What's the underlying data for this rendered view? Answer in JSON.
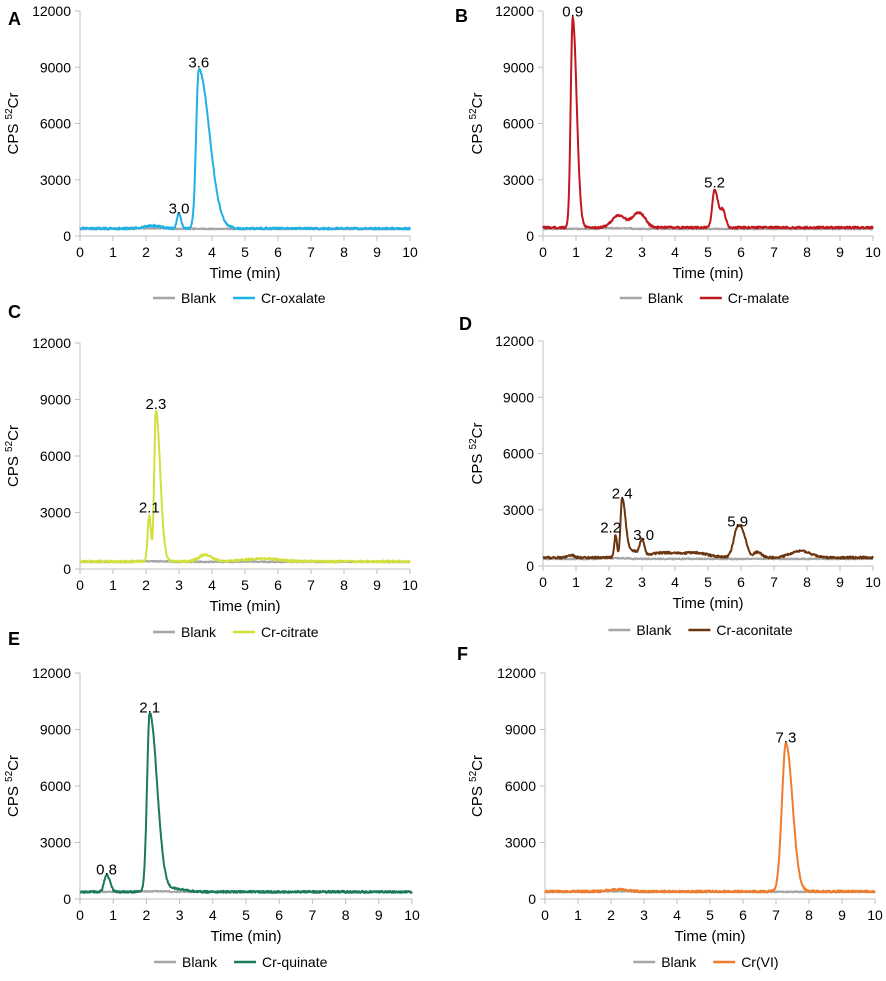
{
  "figure": {
    "blank_color": "#a6a6a6"
  },
  "chart_data": [
    {
      "type": "line",
      "panel": "A",
      "title": "",
      "xlabel": "Time (min)",
      "ylabel": "CPS 52Cr",
      "xlim": [
        0,
        10
      ],
      "ylim": [
        0,
        12000
      ],
      "xticks": [
        0,
        1,
        2,
        3,
        4,
        5,
        6,
        7,
        8,
        9,
        10
      ],
      "yticks": [
        0,
        3000,
        6000,
        9000,
        12000
      ],
      "legend": "bottom",
      "series": [
        {
          "name": "Blank",
          "color": "#a6a6a6",
          "baseline": 380,
          "bumps": [
            [
              2.0,
              2.4,
              0.3,
              60
            ]
          ]
        },
        {
          "name": "Cr-oxalate",
          "color": "#1fb0e6",
          "baseline": 400,
          "peaks": [
            [
              2.2,
              150,
              0.25
            ],
            [
              3.0,
              800,
              0.06
            ],
            [
              3.6,
              8500,
              0.08,
              0.32
            ]
          ]
        }
      ],
      "annotations": [
        {
          "text": "3.0",
          "x": 3.0,
          "y": 1200
        },
        {
          "text": "3.6",
          "x": 3.6,
          "y": 9000
        }
      ]
    },
    {
      "type": "line",
      "panel": "B",
      "title": "",
      "xlabel": "Time (min)",
      "ylabel": "CPS 52Cr",
      "xlim": [
        0,
        10
      ],
      "ylim": [
        0,
        12000
      ],
      "xticks": [
        0,
        1,
        2,
        3,
        4,
        5,
        6,
        7,
        8,
        9,
        10
      ],
      "yticks": [
        0,
        3000,
        6000,
        9000,
        12000
      ],
      "legend": "bottom",
      "series": [
        {
          "name": "Blank",
          "color": "#a6a6a6",
          "baseline": 380,
          "bumps": [
            [
              2.0,
              2.4,
              0.3,
              60
            ]
          ]
        },
        {
          "name": "Cr-malate",
          "color": "#c0181e",
          "baseline": 450,
          "peaks": [
            [
              0.9,
              11200,
              0.06,
              0.12
            ],
            [
              2.3,
              650,
              0.2
            ],
            [
              2.8,
              500,
              0.15
            ],
            [
              3.0,
              500,
              0.15
            ],
            [
              5.2,
              2050,
              0.07,
              0.1
            ],
            [
              5.45,
              900,
              0.08
            ]
          ]
        }
      ],
      "annotations": [
        {
          "text": "0.9",
          "x": 0.9,
          "y": 11700
        },
        {
          "text": "5.2",
          "x": 5.2,
          "y": 2600
        }
      ]
    },
    {
      "type": "line",
      "panel": "C",
      "title": "",
      "xlabel": "Time (min)",
      "ylabel": "CPS 52Cr",
      "xlim": [
        0,
        10
      ],
      "ylim": [
        0,
        12000
      ],
      "xticks": [
        0,
        1,
        2,
        3,
        4,
        5,
        6,
        7,
        8,
        9,
        10
      ],
      "yticks": [
        0,
        3000,
        6000,
        9000,
        12000
      ],
      "legend": "bottom",
      "series": [
        {
          "name": "Blank",
          "color": "#a6a6a6",
          "baseline": 380,
          "bumps": [
            [
              2.0,
              2.4,
              0.3,
              60
            ]
          ]
        },
        {
          "name": "Cr-citrate",
          "color": "#d2e03c",
          "baseline": 400,
          "peaks": [
            [
              2.1,
              2450,
              0.05
            ],
            [
              2.3,
              8000,
              0.05,
              0.13
            ],
            [
              3.8,
              350,
              0.2
            ],
            [
              5.5,
              150,
              0.5
            ]
          ]
        }
      ],
      "annotations": [
        {
          "text": "2.1",
          "x": 2.1,
          "y": 3000
        },
        {
          "text": "2.3",
          "x": 2.3,
          "y": 8500
        }
      ]
    },
    {
      "type": "line",
      "panel": "D",
      "title": "",
      "xlabel": "Time (min)",
      "ylabel": "CPS 52Cr",
      "xlim": [
        0,
        10
      ],
      "ylim": [
        0,
        12000
      ],
      "xticks": [
        0,
        1,
        2,
        3,
        4,
        5,
        6,
        7,
        8,
        9,
        10
      ],
      "yticks": [
        0,
        3000,
        6000,
        9000,
        12000
      ],
      "legend": "bottom",
      "series": [
        {
          "name": "Blank",
          "color": "#a6a6a6",
          "baseline": 380,
          "bumps": [
            [
              2.0,
              2.4,
              0.3,
              60
            ]
          ]
        },
        {
          "name": "Cr-aconitate",
          "color": "#6b3510",
          "baseline": 450,
          "peaks": [
            [
              0.85,
              150,
              0.08
            ],
            [
              2.2,
              1200,
              0.04
            ],
            [
              2.4,
              3150,
              0.05,
              0.1
            ],
            [
              2.7,
              350,
              0.15
            ],
            [
              3.0,
              850,
              0.07
            ],
            [
              3.6,
              250,
              0.4
            ],
            [
              4.6,
              250,
              0.4
            ],
            [
              5.9,
              1600,
              0.12,
              0.12
            ],
            [
              6.1,
              800,
              0.1
            ],
            [
              6.5,
              300,
              0.12
            ],
            [
              7.8,
              350,
              0.3
            ]
          ]
        }
      ],
      "annotations": [
        {
          "text": "2.2",
          "x": 2.05,
          "y": 1800
        },
        {
          "text": "2.4",
          "x": 2.4,
          "y": 3600
        },
        {
          "text": "3.0",
          "x": 3.05,
          "y": 1400
        },
        {
          "text": "5.9",
          "x": 5.9,
          "y": 2100
        }
      ]
    },
    {
      "type": "line",
      "panel": "E",
      "title": "",
      "xlabel": "Time (min)",
      "ylabel": "CPS 52Cr",
      "xlim": [
        0,
        10
      ],
      "ylim": [
        0,
        12000
      ],
      "xticks": [
        0,
        1,
        2,
        3,
        4,
        5,
        6,
        7,
        8,
        9,
        10
      ],
      "yticks": [
        0,
        3000,
        6000,
        9000,
        12000
      ],
      "legend": "bottom",
      "series": [
        {
          "name": "Blank",
          "color": "#a6a6a6",
          "baseline": 380,
          "bumps": [
            [
              2.0,
              2.4,
              0.3,
              60
            ]
          ]
        },
        {
          "name": "Cr-quinate",
          "color": "#1a7a5a",
          "baseline": 380,
          "peaks": [
            [
              0.8,
              900,
              0.07,
              0.1
            ],
            [
              2.1,
              9500,
              0.08,
              0.22
            ],
            [
              2.9,
              150,
              0.3
            ]
          ]
        }
      ],
      "annotations": [
        {
          "text": "0.8",
          "x": 0.8,
          "y": 1300
        },
        {
          "text": "2.1",
          "x": 2.1,
          "y": 9900
        }
      ]
    },
    {
      "type": "line",
      "panel": "F",
      "title": "",
      "xlabel": "Time (min)",
      "ylabel": "CPS 52Cr",
      "xlim": [
        0,
        10
      ],
      "ylim": [
        0,
        12000
      ],
      "xticks": [
        0,
        1,
        2,
        3,
        4,
        5,
        6,
        7,
        8,
        9,
        10
      ],
      "yticks": [
        0,
        3000,
        6000,
        9000,
        12000
      ],
      "legend": "bottom",
      "series": [
        {
          "name": "Blank",
          "color": "#a6a6a6",
          "baseline": 380,
          "bumps": [
            [
              2.0,
              2.4,
              0.3,
              60
            ]
          ]
        },
        {
          "name": "Cr(VI)",
          "color": "#ee7d2e",
          "baseline": 400,
          "peaks": [
            [
              2.2,
              100,
              0.3
            ],
            [
              7.3,
              7850,
              0.12,
              0.2
            ]
          ]
        }
      ],
      "annotations": [
        {
          "text": "7.3",
          "x": 7.3,
          "y": 8300
        }
      ]
    }
  ]
}
